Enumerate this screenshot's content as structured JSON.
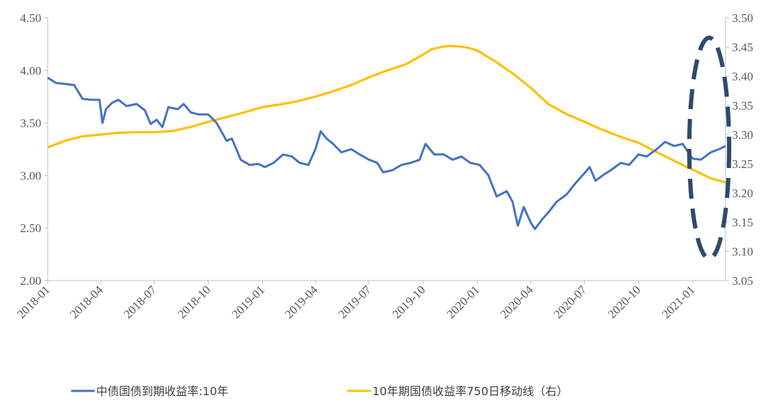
{
  "chart_data": {
    "type": "line",
    "x_range": [
      "2018-01-01",
      "2021-02-26"
    ],
    "x_ticks": [
      "2018-01",
      "2018-04",
      "2018-07",
      "2018-10",
      "2019-01",
      "2019-04",
      "2019-07",
      "2019-10",
      "2020-01",
      "2020-04",
      "2020-07",
      "2020-10",
      "2021-01"
    ],
    "y_left": {
      "min": 2.0,
      "max": 4.5,
      "ticks": [
        "2.00",
        "2.50",
        "3.00",
        "3.50",
        "4.00",
        "4.50"
      ]
    },
    "y_right": {
      "min": 3.05,
      "max": 3.5,
      "ticks": [
        "3.05",
        "3.10",
        "3.15",
        "3.20",
        "3.25",
        "3.30",
        "3.35",
        "3.40",
        "3.45",
        "3.50"
      ]
    },
    "grid": false,
    "legend_position": "bottom",
    "colors": {
      "series_left": "#4472c4",
      "series_right": "#ffc000",
      "ellipse": "#2e4a6b",
      "axis": "#bfbfbf",
      "tick_text": "#595959"
    },
    "annotations": [
      {
        "shape": "dashed-ellipse",
        "from": "2020-12-10",
        "to": "2021-02-26",
        "covers": "most recent period"
      }
    ],
    "series": [
      {
        "name": "中债国债到期收益率:10年",
        "axis": "left",
        "x": [
          "2018-01-01",
          "2018-01-15",
          "2018-02-01",
          "2018-02-15",
          "2018-03-01",
          "2018-03-15",
          "2018-03-30",
          "2018-04-04",
          "2018-04-10",
          "2018-04-20",
          "2018-05-01",
          "2018-05-15",
          "2018-06-01",
          "2018-06-15",
          "2018-06-25",
          "2018-07-05",
          "2018-07-15",
          "2018-07-25",
          "2018-08-10",
          "2018-08-20",
          "2018-09-01",
          "2018-09-15",
          "2018-10-01",
          "2018-10-15",
          "2018-11-01",
          "2018-11-10",
          "2018-11-25",
          "2018-12-10",
          "2018-12-25",
          "2019-01-05",
          "2019-01-20",
          "2019-02-05",
          "2019-02-20",
          "2019-03-05",
          "2019-03-20",
          "2019-04-01",
          "2019-04-10",
          "2019-04-20",
          "2019-05-01",
          "2019-05-15",
          "2019-06-01",
          "2019-06-15",
          "2019-07-01",
          "2019-07-15",
          "2019-07-25",
          "2019-08-10",
          "2019-08-25",
          "2019-09-10",
          "2019-09-25",
          "2019-10-05",
          "2019-10-20",
          "2019-11-05",
          "2019-11-20",
          "2019-12-05",
          "2019-12-20",
          "2020-01-05",
          "2020-01-20",
          "2020-02-03",
          "2020-02-20",
          "2020-03-01",
          "2020-03-10",
          "2020-03-20",
          "2020-04-01",
          "2020-04-08",
          "2020-04-20",
          "2020-05-01",
          "2020-05-15",
          "2020-06-01",
          "2020-06-15",
          "2020-07-01",
          "2020-07-10",
          "2020-07-20",
          "2020-08-01",
          "2020-08-15",
          "2020-09-01",
          "2020-09-15",
          "2020-10-01",
          "2020-10-15",
          "2020-11-01",
          "2020-11-15",
          "2020-12-01",
          "2020-12-15",
          "2021-01-01",
          "2021-01-15",
          "2021-02-01",
          "2021-02-15",
          "2021-02-26"
        ],
        "values": [
          3.93,
          3.88,
          3.87,
          3.86,
          3.73,
          3.72,
          3.72,
          3.5,
          3.63,
          3.69,
          3.72,
          3.66,
          3.68,
          3.62,
          3.49,
          3.53,
          3.46,
          3.65,
          3.63,
          3.68,
          3.6,
          3.58,
          3.58,
          3.5,
          3.33,
          3.35,
          3.15,
          3.1,
          3.11,
          3.08,
          3.12,
          3.2,
          3.18,
          3.12,
          3.1,
          3.25,
          3.42,
          3.35,
          3.3,
          3.22,
          3.25,
          3.2,
          3.15,
          3.12,
          3.03,
          3.05,
          3.1,
          3.12,
          3.15,
          3.3,
          3.2,
          3.2,
          3.15,
          3.18,
          3.12,
          3.1,
          3.0,
          2.8,
          2.85,
          2.75,
          2.52,
          2.7,
          2.55,
          2.49,
          2.58,
          2.65,
          2.75,
          2.82,
          2.92,
          3.02,
          3.08,
          2.95,
          3.0,
          3.05,
          3.12,
          3.1,
          3.2,
          3.18,
          3.25,
          3.32,
          3.28,
          3.3,
          3.16,
          3.15,
          3.22,
          3.25,
          3.28
        ]
      },
      {
        "name": "10年期国债收益率750日移动线（右）",
        "axis": "right",
        "x": [
          "2018-01-01",
          "2018-02-01",
          "2018-03-01",
          "2018-04-01",
          "2018-05-01",
          "2018-06-01",
          "2018-07-01",
          "2018-08-01",
          "2018-09-01",
          "2018-10-01",
          "2018-11-01",
          "2018-12-01",
          "2019-01-01",
          "2019-02-01",
          "2019-03-01",
          "2019-04-01",
          "2019-05-01",
          "2019-06-01",
          "2019-07-01",
          "2019-08-01",
          "2019-09-01",
          "2019-10-01",
          "2019-10-15",
          "2019-11-01",
          "2019-11-15",
          "2019-12-01",
          "2019-12-15",
          "2020-01-01",
          "2020-02-01",
          "2020-03-01",
          "2020-04-01",
          "2020-05-01",
          "2020-06-01",
          "2020-07-01",
          "2020-08-01",
          "2020-09-01",
          "2020-10-01",
          "2020-11-01",
          "2020-12-01",
          "2021-01-01",
          "2021-02-01",
          "2021-02-26"
        ],
        "values": [
          3.278,
          3.29,
          3.297,
          3.3,
          3.303,
          3.304,
          3.304,
          3.306,
          3.313,
          3.322,
          3.33,
          3.338,
          3.347,
          3.352,
          3.357,
          3.365,
          3.374,
          3.385,
          3.398,
          3.41,
          3.42,
          3.437,
          3.446,
          3.45,
          3.452,
          3.451,
          3.449,
          3.444,
          3.425,
          3.405,
          3.38,
          3.352,
          3.335,
          3.322,
          3.308,
          3.296,
          3.286,
          3.27,
          3.255,
          3.24,
          3.225,
          3.218
        ]
      }
    ]
  }
}
